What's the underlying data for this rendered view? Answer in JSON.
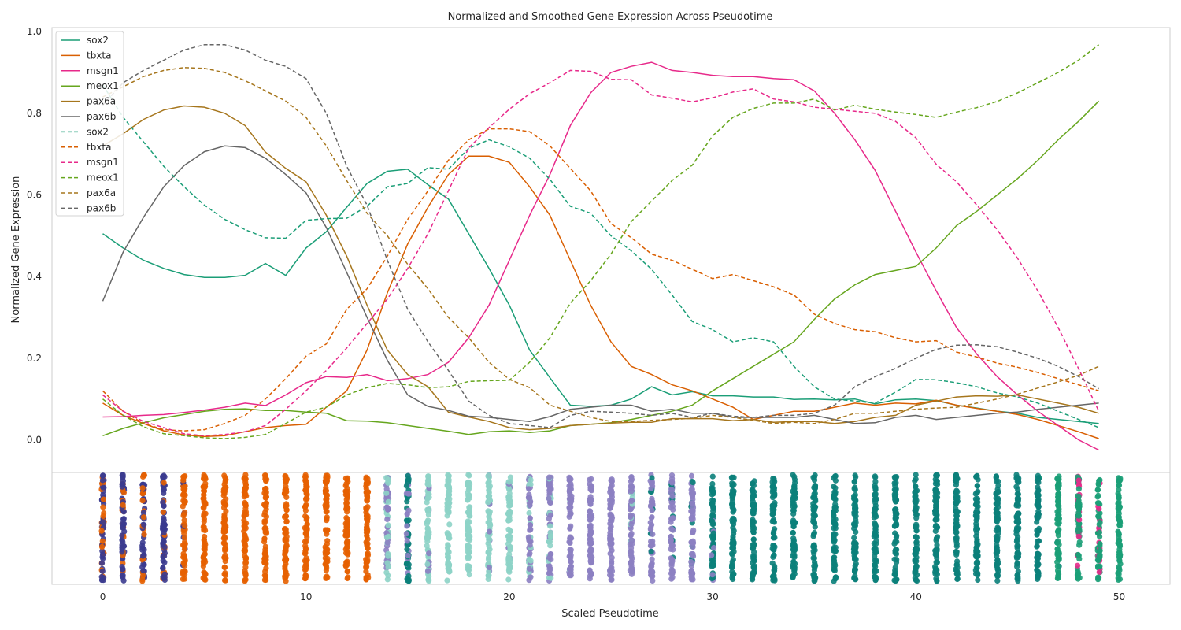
{
  "chart_data": {
    "type": "line",
    "title": "Normalized and Smoothed Gene Expression Across Pseudotime",
    "xlabel": "Scaled Pseudotime",
    "ylabel": "Normalized Gene Expression",
    "xlim": [
      -2.5,
      52.5
    ],
    "ylim": [
      -0.08,
      1.01
    ],
    "x_ticks": [
      0,
      10,
      20,
      30,
      40,
      50
    ],
    "y_ticks": [
      0.0,
      0.2,
      0.4,
      0.6,
      0.8,
      1.0
    ],
    "legend_position": "top-left",
    "x": [
      0,
      1,
      2,
      3,
      4,
      5,
      6,
      7,
      8,
      9,
      10,
      11,
      12,
      13,
      14,
      15,
      16,
      17,
      18,
      19,
      20,
      21,
      22,
      23,
      24,
      25,
      26,
      27,
      28,
      29,
      30,
      31,
      32,
      33,
      34,
      35,
      36,
      37,
      38,
      39,
      40,
      41,
      42,
      43,
      44,
      45,
      46,
      47,
      48,
      49
    ],
    "series": [
      {
        "name": "sox2",
        "style": "solid",
        "color": "#1b9e77",
        "values": [
          0.505,
          0.47,
          0.44,
          0.42,
          0.405,
          0.398,
          0.398,
          0.403,
          0.432,
          0.403,
          0.47,
          0.51,
          0.57,
          0.628,
          0.658,
          0.663,
          0.625,
          0.59,
          0.505,
          0.42,
          0.33,
          0.22,
          0.152,
          0.085,
          0.082,
          0.085,
          0.1,
          0.13,
          0.11,
          0.118,
          0.108,
          0.108,
          0.105,
          0.105,
          0.099,
          0.1,
          0.098,
          0.1,
          0.088,
          0.098,
          0.1,
          0.096,
          0.085,
          0.078,
          0.07,
          0.065,
          0.055,
          0.05,
          0.045,
          0.04
        ]
      },
      {
        "name": "tbxta",
        "style": "solid",
        "color": "#d95f02",
        "values": [
          0.09,
          0.06,
          0.04,
          0.022,
          0.012,
          0.008,
          0.01,
          0.02,
          0.03,
          0.035,
          0.038,
          0.08,
          0.12,
          0.22,
          0.36,
          0.48,
          0.57,
          0.65,
          0.695,
          0.695,
          0.68,
          0.62,
          0.55,
          0.44,
          0.33,
          0.24,
          0.18,
          0.16,
          0.135,
          0.12,
          0.1,
          0.08,
          0.05,
          0.06,
          0.07,
          0.07,
          0.08,
          0.09,
          0.085,
          0.09,
          0.088,
          0.097,
          0.085,
          0.077,
          0.07,
          0.062,
          0.05,
          0.035,
          0.02,
          0.003
        ]
      },
      {
        "name": "msgn1",
        "style": "solid",
        "color": "#e7298a",
        "values": [
          0.056,
          0.057,
          0.06,
          0.062,
          0.067,
          0.073,
          0.08,
          0.09,
          0.084,
          0.11,
          0.14,
          0.155,
          0.153,
          0.16,
          0.145,
          0.15,
          0.16,
          0.19,
          0.25,
          0.33,
          0.44,
          0.55,
          0.65,
          0.77,
          0.85,
          0.9,
          0.915,
          0.925,
          0.905,
          0.9,
          0.893,
          0.89,
          0.89,
          0.885,
          0.882,
          0.855,
          0.8,
          0.735,
          0.66,
          0.56,
          0.46,
          0.365,
          0.275,
          0.21,
          0.155,
          0.11,
          0.07,
          0.035,
          0.0,
          -0.025
        ]
      },
      {
        "name": "meox1",
        "style": "solid",
        "color": "#66a61e",
        "values": [
          0.01,
          0.028,
          0.042,
          0.054,
          0.062,
          0.07,
          0.075,
          0.076,
          0.072,
          0.072,
          0.068,
          0.065,
          0.047,
          0.046,
          0.042,
          0.035,
          0.028,
          0.021,
          0.013,
          0.02,
          0.022,
          0.018,
          0.022,
          0.035,
          0.038,
          0.042,
          0.05,
          0.06,
          0.07,
          0.085,
          0.12,
          0.15,
          0.18,
          0.21,
          0.24,
          0.295,
          0.345,
          0.38,
          0.405,
          0.415,
          0.425,
          0.47,
          0.525,
          0.56,
          0.6,
          0.64,
          0.685,
          0.735,
          0.78,
          0.83
        ]
      },
      {
        "name": "pax6a",
        "style": "solid",
        "color": "#a6761d",
        "values": [
          0.72,
          0.75,
          0.785,
          0.808,
          0.818,
          0.815,
          0.8,
          0.77,
          0.705,
          0.665,
          0.632,
          0.55,
          0.45,
          0.33,
          0.22,
          0.16,
          0.13,
          0.068,
          0.056,
          0.045,
          0.03,
          0.025,
          0.028,
          0.035,
          0.038,
          0.041,
          0.043,
          0.043,
          0.052,
          0.052,
          0.052,
          0.047,
          0.05,
          0.043,
          0.045,
          0.045,
          0.04,
          0.045,
          0.055,
          0.06,
          0.085,
          0.095,
          0.105,
          0.108,
          0.107,
          0.11,
          0.1,
          0.09,
          0.08,
          0.065
        ]
      },
      {
        "name": "pax6b",
        "style": "solid",
        "color": "#666666",
        "values": [
          0.34,
          0.46,
          0.545,
          0.62,
          0.672,
          0.706,
          0.72,
          0.716,
          0.69,
          0.65,
          0.605,
          0.52,
          0.41,
          0.3,
          0.195,
          0.11,
          0.082,
          0.072,
          0.058,
          0.055,
          0.05,
          0.045,
          0.057,
          0.075,
          0.08,
          0.085,
          0.085,
          0.07,
          0.075,
          0.065,
          0.065,
          0.055,
          0.055,
          0.055,
          0.055,
          0.06,
          0.05,
          0.04,
          0.042,
          0.055,
          0.06,
          0.05,
          0.055,
          0.06,
          0.065,
          0.068,
          0.075,
          0.08,
          0.085,
          0.09
        ]
      },
      {
        "name": "sox2",
        "style": "dashed",
        "color": "#1b9e77",
        "values": [
          0.87,
          0.79,
          0.73,
          0.67,
          0.62,
          0.575,
          0.54,
          0.515,
          0.495,
          0.494,
          0.538,
          0.542,
          0.543,
          0.572,
          0.62,
          0.628,
          0.667,
          0.663,
          0.714,
          0.735,
          0.718,
          0.69,
          0.638,
          0.572,
          0.555,
          0.5,
          0.463,
          0.418,
          0.355,
          0.29,
          0.27,
          0.24,
          0.25,
          0.24,
          0.18,
          0.13,
          0.1,
          0.095,
          0.09,
          0.117,
          0.148,
          0.147,
          0.14,
          0.13,
          0.115,
          0.105,
          0.09,
          0.07,
          0.05,
          0.03
        ]
      },
      {
        "name": "tbxta",
        "style": "dashed",
        "color": "#d95f02",
        "values": [
          0.12,
          0.07,
          0.04,
          0.025,
          0.022,
          0.025,
          0.04,
          0.06,
          0.1,
          0.15,
          0.205,
          0.235,
          0.32,
          0.37,
          0.45,
          0.54,
          0.61,
          0.685,
          0.735,
          0.762,
          0.762,
          0.755,
          0.72,
          0.665,
          0.61,
          0.53,
          0.495,
          0.455,
          0.44,
          0.418,
          0.395,
          0.405,
          0.39,
          0.375,
          0.355,
          0.308,
          0.285,
          0.27,
          0.265,
          0.25,
          0.24,
          0.243,
          0.215,
          0.203,
          0.188,
          0.178,
          0.165,
          0.15,
          0.135,
          0.12
        ]
      },
      {
        "name": "msgn1",
        "style": "dashed",
        "color": "#e7298a",
        "values": [
          0.11,
          0.07,
          0.045,
          0.03,
          0.015,
          0.01,
          0.013,
          0.02,
          0.035,
          0.075,
          0.12,
          0.17,
          0.225,
          0.285,
          0.345,
          0.42,
          0.505,
          0.61,
          0.715,
          0.765,
          0.81,
          0.848,
          0.875,
          0.905,
          0.903,
          0.883,
          0.882,
          0.845,
          0.837,
          0.828,
          0.838,
          0.852,
          0.86,
          0.835,
          0.828,
          0.815,
          0.81,
          0.805,
          0.8,
          0.78,
          0.74,
          0.675,
          0.632,
          0.575,
          0.515,
          0.445,
          0.365,
          0.275,
          0.175,
          0.07
        ]
      },
      {
        "name": "meox1",
        "style": "dashed",
        "color": "#66a61e",
        "values": [
          0.1,
          0.06,
          0.032,
          0.015,
          0.01,
          0.005,
          0.003,
          0.006,
          0.013,
          0.04,
          0.068,
          0.08,
          0.11,
          0.128,
          0.138,
          0.135,
          0.128,
          0.13,
          0.143,
          0.145,
          0.146,
          0.19,
          0.25,
          0.335,
          0.39,
          0.455,
          0.535,
          0.585,
          0.635,
          0.673,
          0.745,
          0.79,
          0.812,
          0.825,
          0.825,
          0.835,
          0.808,
          0.82,
          0.81,
          0.803,
          0.797,
          0.79,
          0.803,
          0.814,
          0.829,
          0.85,
          0.875,
          0.9,
          0.93,
          0.968
        ]
      },
      {
        "name": "pax6a",
        "style": "dashed",
        "color": "#a6761d",
        "values": [
          0.84,
          0.865,
          0.89,
          0.905,
          0.912,
          0.91,
          0.9,
          0.88,
          0.855,
          0.83,
          0.79,
          0.72,
          0.635,
          0.555,
          0.5,
          0.43,
          0.37,
          0.3,
          0.25,
          0.19,
          0.148,
          0.128,
          0.085,
          0.07,
          0.055,
          0.045,
          0.045,
          0.048,
          0.05,
          0.053,
          0.06,
          0.055,
          0.048,
          0.04,
          0.043,
          0.04,
          0.05,
          0.065,
          0.065,
          0.07,
          0.075,
          0.078,
          0.08,
          0.09,
          0.1,
          0.112,
          0.127,
          0.142,
          0.158,
          0.18
        ]
      },
      {
        "name": "pax6b",
        "style": "dashed",
        "color": "#666666",
        "values": [
          0.82,
          0.875,
          0.905,
          0.93,
          0.955,
          0.968,
          0.968,
          0.955,
          0.93,
          0.915,
          0.885,
          0.8,
          0.67,
          0.575,
          0.44,
          0.32,
          0.24,
          0.17,
          0.095,
          0.06,
          0.04,
          0.035,
          0.03,
          0.06,
          0.07,
          0.068,
          0.065,
          0.06,
          0.065,
          0.055,
          0.065,
          0.058,
          0.055,
          0.06,
          0.06,
          0.065,
          0.085,
          0.13,
          0.155,
          0.175,
          0.2,
          0.222,
          0.232,
          0.233,
          0.228,
          0.215,
          0.2,
          0.18,
          0.155,
          0.125
        ]
      }
    ],
    "cell_panel": {
      "type": "strip",
      "x": [
        0,
        1,
        2,
        3,
        4,
        5,
        6,
        7,
        8,
        9,
        10,
        11,
        12,
        13,
        14,
        15,
        16,
        17,
        18,
        19,
        20,
        21,
        22,
        23,
        24,
        25,
        26,
        27,
        28,
        29,
        30,
        31,
        32,
        33,
        34,
        35,
        36,
        37,
        38,
        39,
        40,
        41,
        42,
        43,
        44,
        45,
        46,
        47,
        48,
        49,
        50
      ],
      "dominant_color": [
        "#3b3b8f",
        "#3b3b8f",
        "#3b3b8f",
        "#3b3b8f",
        "#e66101",
        "#e66101",
        "#e66101",
        "#e66101",
        "#e66101",
        "#e66101",
        "#e66101",
        "#e66101",
        "#e66101",
        "#e66101",
        "#8c80c2",
        "#0b7f7a",
        "#8dd3c7",
        "#8dd3c7",
        "#8dd3c7",
        "#8dd3c7",
        "#8dd3c7",
        "#8c80c2",
        "#8c80c2",
        "#8c80c2",
        "#8c80c2",
        "#8c80c2",
        "#8c80c2",
        "#8c80c2",
        "#8c80c2",
        "#8c80c2",
        "#0b7f7a",
        "#0b7f7a",
        "#0b7f7a",
        "#0b7f7a",
        "#0b7f7a",
        "#0b7f7a",
        "#0b7f7a",
        "#0b7f7a",
        "#0b7f7a",
        "#0b7f7a",
        "#0b7f7a",
        "#0b7f7a",
        "#0b7f7a",
        "#0b7f7a",
        "#0b7f7a",
        "#0b7f7a",
        "#0b7f7a",
        "#1b9e77",
        "#1b9e77",
        "#1b9e77",
        "#1b9e77"
      ],
      "accent_color": [
        "#e66101",
        "#e66101",
        "#e66101",
        "#e66101",
        "#3b3b8f",
        "#e66101",
        "#e66101",
        "#e66101",
        "#e66101",
        "#e66101",
        "#e66101",
        "#e66101",
        "#e66101",
        "#e66101",
        "#8dd3c7",
        "#8c80c2",
        "#8c80c2",
        "#8dd3c7",
        "#8dd3c7",
        "#8c80c2",
        "#8c80c2",
        "#8dd3c7",
        "#8dd3c7",
        "#8dd3c7",
        "#8c80c2",
        "#8c80c2",
        "#8dd3c7",
        "#0b7f7a",
        "#0b7f7a",
        "#0b7f7a",
        "#8c80c2",
        "#0b7f7a",
        "#0b7f7a",
        "#0b7f7a",
        "#0b7f7a",
        "#0b7f7a",
        "#0b7f7a",
        "#0b7f7a",
        "#0b7f7a",
        "#0b7f7a",
        "#0b7f7a",
        "#0b7f7a",
        "#0b7f7a",
        "#0b7f7a",
        "#0b7f7a",
        "#0b7f7a",
        "#1b9e77",
        "#0b7f7a",
        "#e7298a",
        "#e7298a",
        "#1b9e77"
      ],
      "accent_fraction": [
        0.35,
        0.25,
        0.3,
        0.2,
        0.12,
        0,
        0,
        0,
        0,
        0,
        0,
        0,
        0,
        0,
        0.5,
        0.3,
        0.2,
        0,
        0,
        0.08,
        0.1,
        0.3,
        0.3,
        0.05,
        0.05,
        0.05,
        0.1,
        0.1,
        0.1,
        0.1,
        0.15,
        0,
        0,
        0,
        0,
        0,
        0,
        0,
        0,
        0,
        0,
        0,
        0,
        0,
        0,
        0,
        0.05,
        0.05,
        0.15,
        0.1,
        0
      ]
    }
  }
}
